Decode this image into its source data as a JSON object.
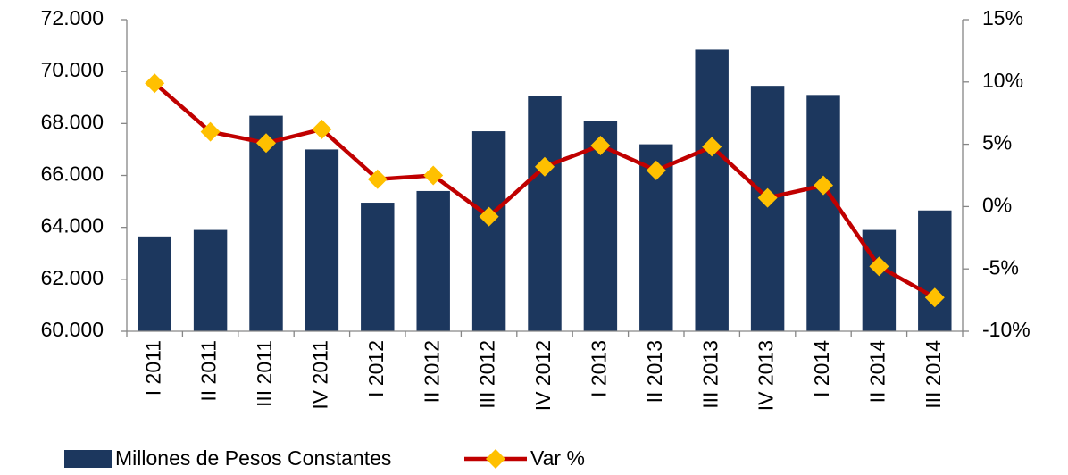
{
  "chart_data": {
    "type": "bar_line",
    "categories": [
      "I 2011",
      "II 2011",
      "III 2011",
      "IV 2011",
      "I 2012",
      "II 2012",
      "III 2012",
      "IV 2012",
      "I 2013",
      "II 2013",
      "III 2013",
      "IV 2013",
      "I 2014",
      "II 2014",
      "III 2014"
    ],
    "series": [
      {
        "name": "Millones de Pesos Constantes",
        "color": "#1c375e",
        "type": "bar",
        "values": [
          63650,
          63900,
          68300,
          67000,
          64950,
          65400,
          67700,
          69050,
          68100,
          67200,
          70850,
          69450,
          69100,
          63900,
          64650
        ]
      },
      {
        "name": "Var %",
        "color": "#c00000",
        "marker_color": "#ffc000",
        "type": "line",
        "axis": "y2",
        "values": [
          9.9,
          6.0,
          5.1,
          6.2,
          2.2,
          2.5,
          -0.8,
          3.2,
          4.9,
          2.9,
          4.8,
          0.7,
          1.7,
          -4.8,
          -7.3
        ]
      }
    ],
    "ylim": [
      60000,
      72000
    ],
    "yticks": [
      {
        "value": 60000,
        "label": "60.000"
      },
      {
        "value": 62000,
        "label": "62.000"
      },
      {
        "value": 64000,
        "label": "64.000"
      },
      {
        "value": 66000,
        "label": "66.000"
      },
      {
        "value": 68000,
        "label": "68.000"
      },
      {
        "value": 70000,
        "label": "70.000"
      },
      {
        "value": 72000,
        "label": "72.000"
      }
    ],
    "y2lim": [
      -10,
      15
    ],
    "y2ticks": [
      {
        "value": -10,
        "label": "-10%"
      },
      {
        "value": -5,
        "label": "-5%"
      },
      {
        "value": 0,
        "label": "0%"
      },
      {
        "value": 5,
        "label": "5%"
      },
      {
        "value": 10,
        "label": "10%"
      },
      {
        "value": 15,
        "label": "15%"
      }
    ],
    "legend": "bottom"
  }
}
